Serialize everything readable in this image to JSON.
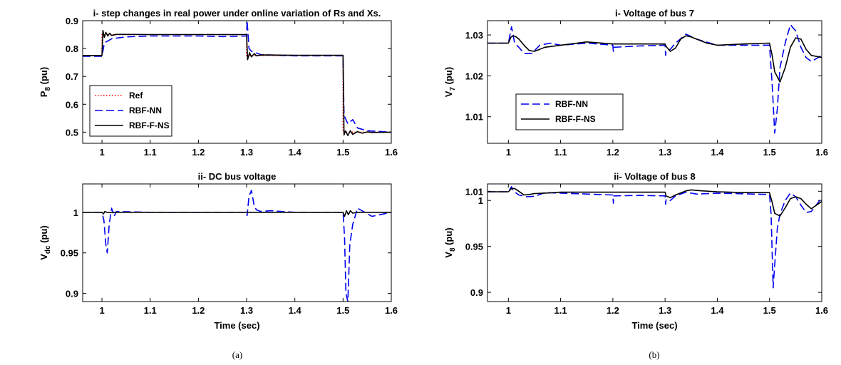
{
  "captions": {
    "a": "(a)",
    "b": "(b)"
  },
  "chart_data": [
    {
      "id": "p8",
      "type": "line",
      "title": "i- step changes in real power under online variation of Rs and Xs.",
      "ylabel_main": "P",
      "ylabel_sub": "8",
      "ylabel_unit": " (pu)",
      "xlabel": "",
      "xlim": [
        0.96,
        1.6
      ],
      "ylim": [
        0.46,
        0.9
      ],
      "xticks": [
        1,
        1.1,
        1.2,
        1.3,
        1.4,
        1.5,
        1.6
      ],
      "xticklabels": [
        "1",
        "1.1",
        "1.2",
        "1.3",
        "1.4",
        "1.5",
        "1.6"
      ],
      "yticks": [
        0.5,
        0.6,
        0.7,
        0.8,
        0.9
      ],
      "yticklabels": [
        "0.5",
        "0.6",
        "0.7",
        "0.8",
        "0.9"
      ],
      "legend_position": "bottom-left",
      "legend": [
        "Ref",
        "RBF-NN",
        "RBF-F-NS"
      ],
      "series": [
        {
          "name": "Ref",
          "color": "#ff0000",
          "style": "dotted",
          "x": [
            0.96,
            1.0,
            1.0,
            1.3,
            1.3,
            1.5,
            1.5,
            1.6
          ],
          "y": [
            0.775,
            0.775,
            0.85,
            0.85,
            0.775,
            0.775,
            0.5,
            0.5
          ]
        },
        {
          "name": "RBF-NN",
          "color": "#0000ee",
          "style": "dashed",
          "x": [
            0.96,
            1.0,
            1.005,
            1.02,
            1.05,
            1.1,
            1.2,
            1.25,
            1.3,
            1.301,
            1.305,
            1.31,
            1.33,
            1.4,
            1.5,
            1.502,
            1.51,
            1.52,
            1.53,
            1.55,
            1.6
          ],
          "y": [
            0.772,
            0.772,
            0.82,
            0.835,
            0.842,
            0.845,
            0.845,
            0.843,
            0.845,
            0.9,
            0.8,
            0.79,
            0.778,
            0.774,
            0.774,
            0.56,
            0.53,
            0.545,
            0.515,
            0.505,
            0.5
          ]
        },
        {
          "name": "RBF-F-NS",
          "color": "#000000",
          "style": "solid",
          "x": [
            0.96,
            1.0,
            1.002,
            1.005,
            1.008,
            1.012,
            1.016,
            1.02,
            1.03,
            1.1,
            1.2,
            1.3,
            1.302,
            1.306,
            1.31,
            1.316,
            1.32,
            1.33,
            1.4,
            1.5,
            1.502,
            1.505,
            1.51,
            1.515,
            1.52,
            1.53,
            1.54,
            1.55,
            1.56,
            1.6
          ],
          "y": [
            0.775,
            0.775,
            0.865,
            0.84,
            0.858,
            0.845,
            0.855,
            0.847,
            0.851,
            0.85,
            0.85,
            0.85,
            0.76,
            0.785,
            0.77,
            0.782,
            0.774,
            0.777,
            0.776,
            0.776,
            0.49,
            0.505,
            0.488,
            0.505,
            0.492,
            0.502,
            0.496,
            0.501,
            0.499,
            0.5
          ]
        }
      ]
    },
    {
      "id": "vdc",
      "type": "line",
      "title": "ii- DC bus voltage",
      "ylabel_main": "V",
      "ylabel_sub": "dc",
      "ylabel_unit": " (pu)",
      "xlabel": "Time (sec)",
      "xlim": [
        0.96,
        1.6
      ],
      "ylim": [
        0.89,
        1.035
      ],
      "xticks": [
        1,
        1.1,
        1.2,
        1.3,
        1.4,
        1.5,
        1.6
      ],
      "xticklabels": [
        "1",
        "1.1",
        "1.2",
        "1.3",
        "1.4",
        "1.5",
        "1.6"
      ],
      "yticks": [
        0.9,
        0.95,
        1
      ],
      "yticklabels": [
        "0.9",
        "0.95",
        "1"
      ],
      "legend": [],
      "series": [
        {
          "name": "RBF-NN",
          "color": "#0000ee",
          "style": "dashed",
          "x": [
            0.96,
            1.0,
            1.004,
            1.008,
            1.011,
            1.015,
            1.02,
            1.025,
            1.03,
            1.1,
            1.3,
            1.301,
            1.305,
            1.31,
            1.315,
            1.32,
            1.33,
            1.35,
            1.4,
            1.5,
            1.503,
            1.506,
            1.51,
            1.514,
            1.52,
            1.53,
            1.56,
            1.6
          ],
          "y": [
            1.0,
            1.0,
            0.99,
            0.96,
            0.95,
            0.985,
            1.005,
            0.995,
            1.001,
            1.0,
            1.0,
            0.996,
            1.02,
            1.027,
            1.01,
            1.003,
            1.001,
            1.002,
            1.0,
            1.0,
            0.97,
            0.9,
            0.89,
            0.96,
            0.985,
            1.005,
            0.995,
            1.0
          ]
        },
        {
          "name": "RBF-F-NS",
          "color": "#000000",
          "style": "solid",
          "x": [
            0.96,
            1.0,
            1.003,
            1.006,
            1.01,
            1.3,
            1.5,
            1.503,
            1.507,
            1.511,
            1.515,
            1.52,
            1.53,
            1.6
          ],
          "y": [
            1.0,
            1.0,
            0.998,
            1.001,
            1.0,
            1.0,
            1.0,
            0.995,
            1.002,
            0.997,
            1.002,
            0.999,
            1.0,
            1.0
          ]
        }
      ]
    },
    {
      "id": "v7",
      "type": "line",
      "title": "i- Voltage of bus 7",
      "ylabel_main": "V",
      "ylabel_sub": "7",
      "ylabel_unit": " (pu)",
      "xlabel": "",
      "xlim": [
        0.96,
        1.6
      ],
      "ylim": [
        1.0035,
        1.0335
      ],
      "xticks": [
        1,
        1.1,
        1.2,
        1.3,
        1.4,
        1.5,
        1.6
      ],
      "xticklabels": [
        "1",
        "1.1",
        "1.2",
        "1.3",
        "1.4",
        "1.5",
        "1.6"
      ],
      "yticks": [
        1.01,
        1.02,
        1.03
      ],
      "yticklabels": [
        "1.01",
        "1.02",
        "1.03"
      ],
      "legend_position": "bottom-left",
      "legend": [
        "RBF-NN",
        "RBF-F-NS"
      ],
      "series": [
        {
          "name": "RBF-NN",
          "color": "#0000ee",
          "style": "dashed",
          "x": [
            0.96,
            1.0,
            1.006,
            1.012,
            1.02,
            1.03,
            1.045,
            1.06,
            1.08,
            1.1,
            1.15,
            1.2,
            1.201,
            1.202,
            1.25,
            1.3,
            1.301,
            1.302,
            1.31,
            1.32,
            1.34,
            1.36,
            1.4,
            1.5,
            1.505,
            1.51,
            1.515,
            1.52,
            1.53,
            1.54,
            1.55,
            1.56,
            1.57,
            1.58,
            1.6
          ],
          "y": [
            1.028,
            1.028,
            1.032,
            1.028,
            1.027,
            1.0255,
            1.0255,
            1.0275,
            1.028,
            1.0275,
            1.028,
            1.0275,
            1.026,
            1.027,
            1.0273,
            1.0275,
            1.025,
            1.026,
            1.0265,
            1.028,
            1.0302,
            1.029,
            1.0275,
            1.0275,
            1.018,
            1.006,
            1.012,
            1.022,
            1.028,
            1.0325,
            1.031,
            1.027,
            1.0245,
            1.0235,
            1.025
          ]
        },
        {
          "name": "RBF-F-NS",
          "color": "#000000",
          "style": "solid",
          "x": [
            0.96,
            1.0,
            1.005,
            1.01,
            1.015,
            1.02,
            1.03,
            1.04,
            1.05,
            1.07,
            1.1,
            1.15,
            1.2,
            1.25,
            1.3,
            1.302,
            1.31,
            1.32,
            1.33,
            1.34,
            1.35,
            1.36,
            1.38,
            1.4,
            1.45,
            1.5,
            1.505,
            1.51,
            1.52,
            1.53,
            1.54,
            1.55,
            1.56,
            1.57,
            1.58,
            1.6
          ],
          "y": [
            1.028,
            1.028,
            1.0295,
            1.0298,
            1.0295,
            1.029,
            1.0275,
            1.0262,
            1.026,
            1.027,
            1.0275,
            1.0283,
            1.0278,
            1.0278,
            1.0278,
            1.0272,
            1.026,
            1.0268,
            1.029,
            1.0298,
            1.0295,
            1.029,
            1.028,
            1.0275,
            1.0278,
            1.028,
            1.025,
            1.021,
            1.0185,
            1.022,
            1.027,
            1.0293,
            1.029,
            1.0265,
            1.025,
            1.0245
          ]
        }
      ]
    },
    {
      "id": "v8",
      "type": "line",
      "title": "ii- Voltage of bus 8",
      "ylabel_main": "V",
      "ylabel_sub": "8",
      "ylabel_unit": " (pu)",
      "xlabel": "Time (sec)",
      "xlim": [
        0.96,
        1.6
      ],
      "ylim": [
        0.89,
        1.018
      ],
      "xticks": [
        1,
        1.1,
        1.2,
        1.3,
        1.4,
        1.5,
        1.6
      ],
      "xticklabels": [
        "1",
        "1.1",
        "1.2",
        "1.3",
        "1.4",
        "1.5",
        "1.6"
      ],
      "yticks": [
        0.9,
        0.95,
        1,
        1.01
      ],
      "yticklabels": [
        "0.9",
        "0.95",
        "1",
        "1.01"
      ],
      "legend": [],
      "series": [
        {
          "name": "RBF-NN",
          "color": "#0000ee",
          "style": "dashed",
          "x": [
            0.96,
            1.0,
            1.006,
            1.01,
            1.02,
            1.035,
            1.05,
            1.07,
            1.1,
            1.2,
            1.201,
            1.202,
            1.25,
            1.3,
            1.301,
            1.302,
            1.31,
            1.32,
            1.34,
            1.36,
            1.4,
            1.5,
            1.503,
            1.507,
            1.51,
            1.515,
            1.52,
            1.53,
            1.54,
            1.55,
            1.56,
            1.57,
            1.58,
            1.6
          ],
          "y": [
            1.0095,
            1.0095,
            1.015,
            1.01,
            1.006,
            1.004,
            1.0045,
            1.0085,
            1.008,
            1.006,
            0.997,
            1.005,
            1.0055,
            1.005,
            0.996,
            1.001,
            1.0,
            1.005,
            1.009,
            1.007,
            1.008,
            1.0065,
            0.985,
            0.905,
            0.93,
            0.97,
            0.985,
            1.0,
            1.008,
            1.004,
            0.995,
            0.987,
            0.988,
            1.003
          ]
        },
        {
          "name": "RBF-F-NS",
          "color": "#000000",
          "style": "solid",
          "x": [
            0.96,
            1.0,
            1.006,
            1.012,
            1.02,
            1.03,
            1.04,
            1.05,
            1.07,
            1.1,
            1.15,
            1.2,
            1.25,
            1.3,
            1.302,
            1.31,
            1.32,
            1.34,
            1.35,
            1.37,
            1.4,
            1.45,
            1.5,
            1.505,
            1.51,
            1.52,
            1.53,
            1.54,
            1.55,
            1.56,
            1.57,
            1.58,
            1.6
          ],
          "y": [
            1.0095,
            1.0095,
            1.013,
            1.013,
            1.01,
            1.006,
            1.0065,
            1.0075,
            1.008,
            1.009,
            1.009,
            1.009,
            1.009,
            1.009,
            1.005,
            1.003,
            1.006,
            1.0105,
            1.0115,
            1.0105,
            1.0095,
            1.0085,
            1.0085,
            0.998,
            0.986,
            0.983,
            0.992,
            1.002,
            1.004,
            1.002,
            0.996,
            0.991,
            0.999
          ]
        }
      ]
    }
  ]
}
